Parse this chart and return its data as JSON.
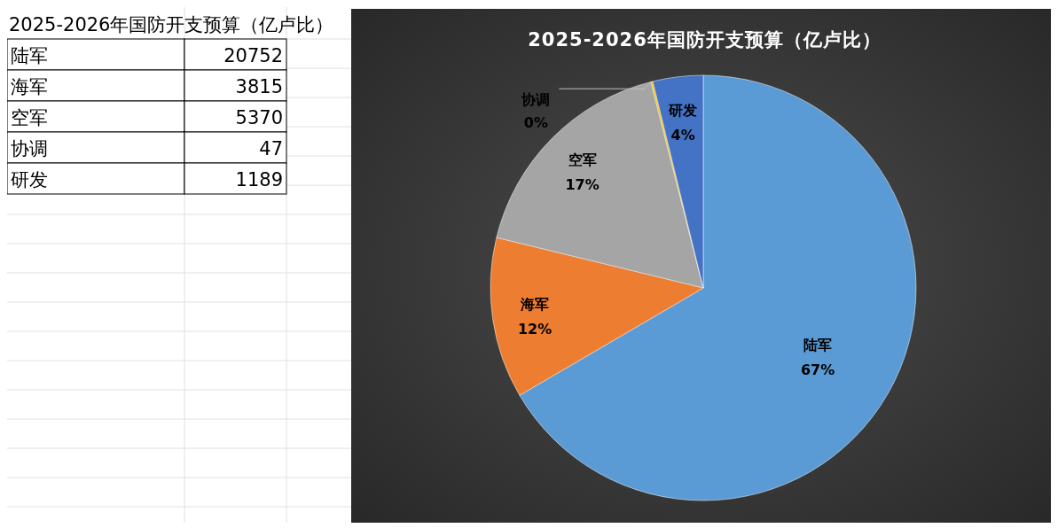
{
  "chart_data": [
    {
      "type": "other",
      "title": "2025-2026年国防开支预算（亿卢比）",
      "categories": [
        "陆军",
        "海军",
        "空军",
        "协调",
        "研发"
      ],
      "values": [
        20752,
        3815,
        5370,
        47,
        1189
      ],
      "data_labels": true
    },
    {
      "type": "pie",
      "title": "2025-2026年国防开支预算（亿卢比）",
      "categories": [
        "陆军",
        "海军",
        "空军",
        "协调",
        "研发"
      ],
      "values": [
        66.57,
        12.24,
        17.23,
        0.15,
        3.81
      ],
      "colors": [
        "#5b9bd5",
        "#ed7d31",
        "#a5a5a5",
        "#ffc000",
        "#4472c4"
      ],
      "value_labels": [
        "67%",
        "12%",
        "17%",
        "0%",
        "4%"
      ]
    }
  ]
}
